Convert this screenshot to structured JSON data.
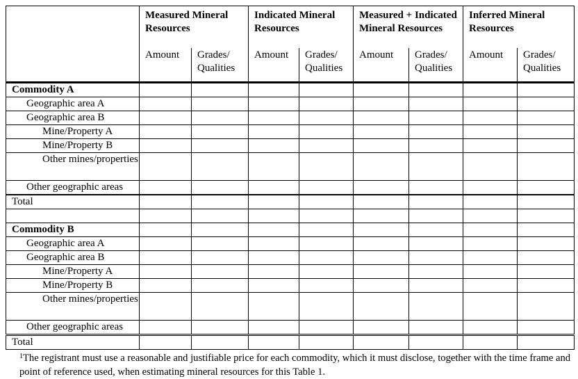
{
  "header": {
    "groups": [
      "Measured Mineral Resources",
      "Indicated Mineral Resources",
      "Measured + Indicated Mineral Resources",
      "Inferred Mineral Resources"
    ],
    "amount": "Amount",
    "grades": "Grades/ Qualities"
  },
  "rows": [
    {
      "label": "Commodity A"
    },
    {
      "label": "Geographic area A"
    },
    {
      "label": "Geographic area B"
    },
    {
      "label": "Mine/Property A"
    },
    {
      "label": "Mine/Property B"
    },
    {
      "label": "Other mines/properties"
    },
    {
      "label": "Other geographic areas"
    },
    {
      "label": "Total"
    },
    {
      "label": ""
    },
    {
      "label": "Commodity B"
    },
    {
      "label": "Geographic area A"
    },
    {
      "label": "Geographic area B"
    },
    {
      "label": "Mine/Property A"
    },
    {
      "label": "Mine/Property B"
    },
    {
      "label": "Other mines/properties"
    },
    {
      "label": "Other geographic areas"
    },
    {
      "label": "Total"
    }
  ],
  "footnote": {
    "marker": "1",
    "text": "The registrant must use a reasonable and justifiable price for each commodity, which it must disclose, together with the time frame and point of reference used, when estimating mineral resources for this Table 1."
  }
}
